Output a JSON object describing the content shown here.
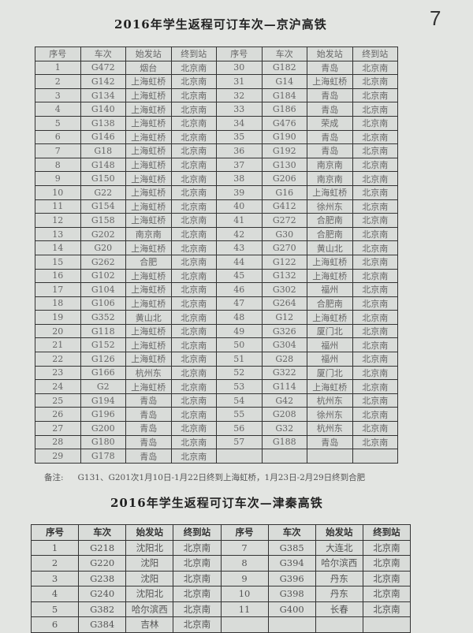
{
  "page_number": "7",
  "table1": {
    "title": "2016年学生返程可订车次—京沪高铁",
    "headers": [
      "序号",
      "车次",
      "始发站",
      "终到站",
      "序号",
      "车次",
      "始发站",
      "终到站"
    ],
    "rows": [
      [
        "1",
        "G472",
        "烟台",
        "北京南",
        "30",
        "G182",
        "青岛",
        "北京南"
      ],
      [
        "2",
        "G142",
        "上海虹桥",
        "北京南",
        "31",
        "G14",
        "上海虹桥",
        "北京南"
      ],
      [
        "3",
        "G134",
        "上海虹桥",
        "北京南",
        "32",
        "G184",
        "青岛",
        "北京南"
      ],
      [
        "4",
        "G140",
        "上海虹桥",
        "北京南",
        "33",
        "G186",
        "青岛",
        "北京南"
      ],
      [
        "5",
        "G138",
        "上海虹桥",
        "北京南",
        "34",
        "G476",
        "荣成",
        "北京南"
      ],
      [
        "6",
        "G146",
        "上海虹桥",
        "北京南",
        "35",
        "G190",
        "青岛",
        "北京南"
      ],
      [
        "7",
        "G18",
        "上海虹桥",
        "北京南",
        "36",
        "G192",
        "青岛",
        "北京南"
      ],
      [
        "8",
        "G148",
        "上海虹桥",
        "北京南",
        "37",
        "G130",
        "南京南",
        "北京南"
      ],
      [
        "9",
        "G150",
        "上海虹桥",
        "北京南",
        "38",
        "G206",
        "南京南",
        "北京南"
      ],
      [
        "10",
        "G22",
        "上海虹桥",
        "北京南",
        "39",
        "G16",
        "上海虹桥",
        "北京南"
      ],
      [
        "11",
        "G154",
        "上海虹桥",
        "北京南",
        "40",
        "G412",
        "徐州东",
        "北京南"
      ],
      [
        "12",
        "G158",
        "上海虹桥",
        "北京南",
        "41",
        "G272",
        "合肥南",
        "北京南"
      ],
      [
        "13",
        "G202",
        "南京南",
        "北京南",
        "42",
        "G30",
        "合肥南",
        "北京南"
      ],
      [
        "14",
        "G20",
        "上海虹桥",
        "北京南",
        "43",
        "G270",
        "黄山北",
        "北京南"
      ],
      [
        "15",
        "G262",
        "合肥",
        "北京南",
        "44",
        "G122",
        "上海虹桥",
        "北京南"
      ],
      [
        "16",
        "G102",
        "上海虹桥",
        "北京南",
        "45",
        "G132",
        "上海虹桥",
        "北京南"
      ],
      [
        "17",
        "G104",
        "上海虹桥",
        "北京南",
        "46",
        "G302",
        "福州",
        "北京南"
      ],
      [
        "18",
        "G106",
        "上海虹桥",
        "北京南",
        "47",
        "G264",
        "合肥南",
        "北京南"
      ],
      [
        "19",
        "G352",
        "黄山北",
        "北京南",
        "48",
        "G12",
        "上海虹桥",
        "北京南"
      ],
      [
        "20",
        "G118",
        "上海虹桥",
        "北京南",
        "49",
        "G326",
        "厦门北",
        "北京南"
      ],
      [
        "21",
        "G152",
        "上海虹桥",
        "北京南",
        "50",
        "G304",
        "福州",
        "北京南"
      ],
      [
        "22",
        "G126",
        "上海虹桥",
        "北京南",
        "51",
        "G28",
        "福州",
        "北京南"
      ],
      [
        "23",
        "G166",
        "杭州东",
        "北京南",
        "52",
        "G322",
        "厦门北",
        "北京南"
      ],
      [
        "24",
        "G2",
        "上海虹桥",
        "北京南",
        "53",
        "G114",
        "上海虹桥",
        "北京南"
      ],
      [
        "25",
        "G194",
        "青岛",
        "北京南",
        "54",
        "G42",
        "杭州东",
        "北京南"
      ],
      [
        "26",
        "G196",
        "青岛",
        "北京南",
        "55",
        "G208",
        "徐州东",
        "北京南"
      ],
      [
        "27",
        "G200",
        "青岛",
        "北京南",
        "56",
        "G32",
        "杭州东",
        "北京南"
      ],
      [
        "28",
        "G180",
        "青岛",
        "北京南",
        "57",
        "G188",
        "青岛",
        "北京南"
      ],
      [
        "29",
        "G178",
        "青岛",
        "北京南",
        "",
        "",
        "",
        ""
      ]
    ],
    "note_label": "备注:",
    "note_text": "G131、G201次1月10日-1月22日终到上海虹桥，1月23日-2月29日终到合肥"
  },
  "table2": {
    "title": "2016年学生返程可订车次—津秦高铁",
    "headers": [
      "序号",
      "车次",
      "始发站",
      "终到站",
      "序号",
      "车次",
      "始发站",
      "终到站"
    ],
    "rows": [
      [
        "1",
        "G218",
        "沈阳北",
        "北京南",
        "7",
        "G385",
        "大连北",
        "北京南"
      ],
      [
        "2",
        "G220",
        "沈阳",
        "北京南",
        "8",
        "G394",
        "哈尔滨西",
        "北京南"
      ],
      [
        "3",
        "G238",
        "沈阳",
        "北京南",
        "9",
        "G396",
        "丹东",
        "北京南"
      ],
      [
        "4",
        "G240",
        "沈阳北",
        "北京南",
        "10",
        "G398",
        "丹东",
        "北京南"
      ],
      [
        "5",
        "G382",
        "哈尔滨西",
        "北京南",
        "11",
        "G400",
        "长春",
        "北京南"
      ],
      [
        "6",
        "G384",
        "吉林",
        "北京南",
        "",
        "",
        "",
        ""
      ]
    ]
  }
}
